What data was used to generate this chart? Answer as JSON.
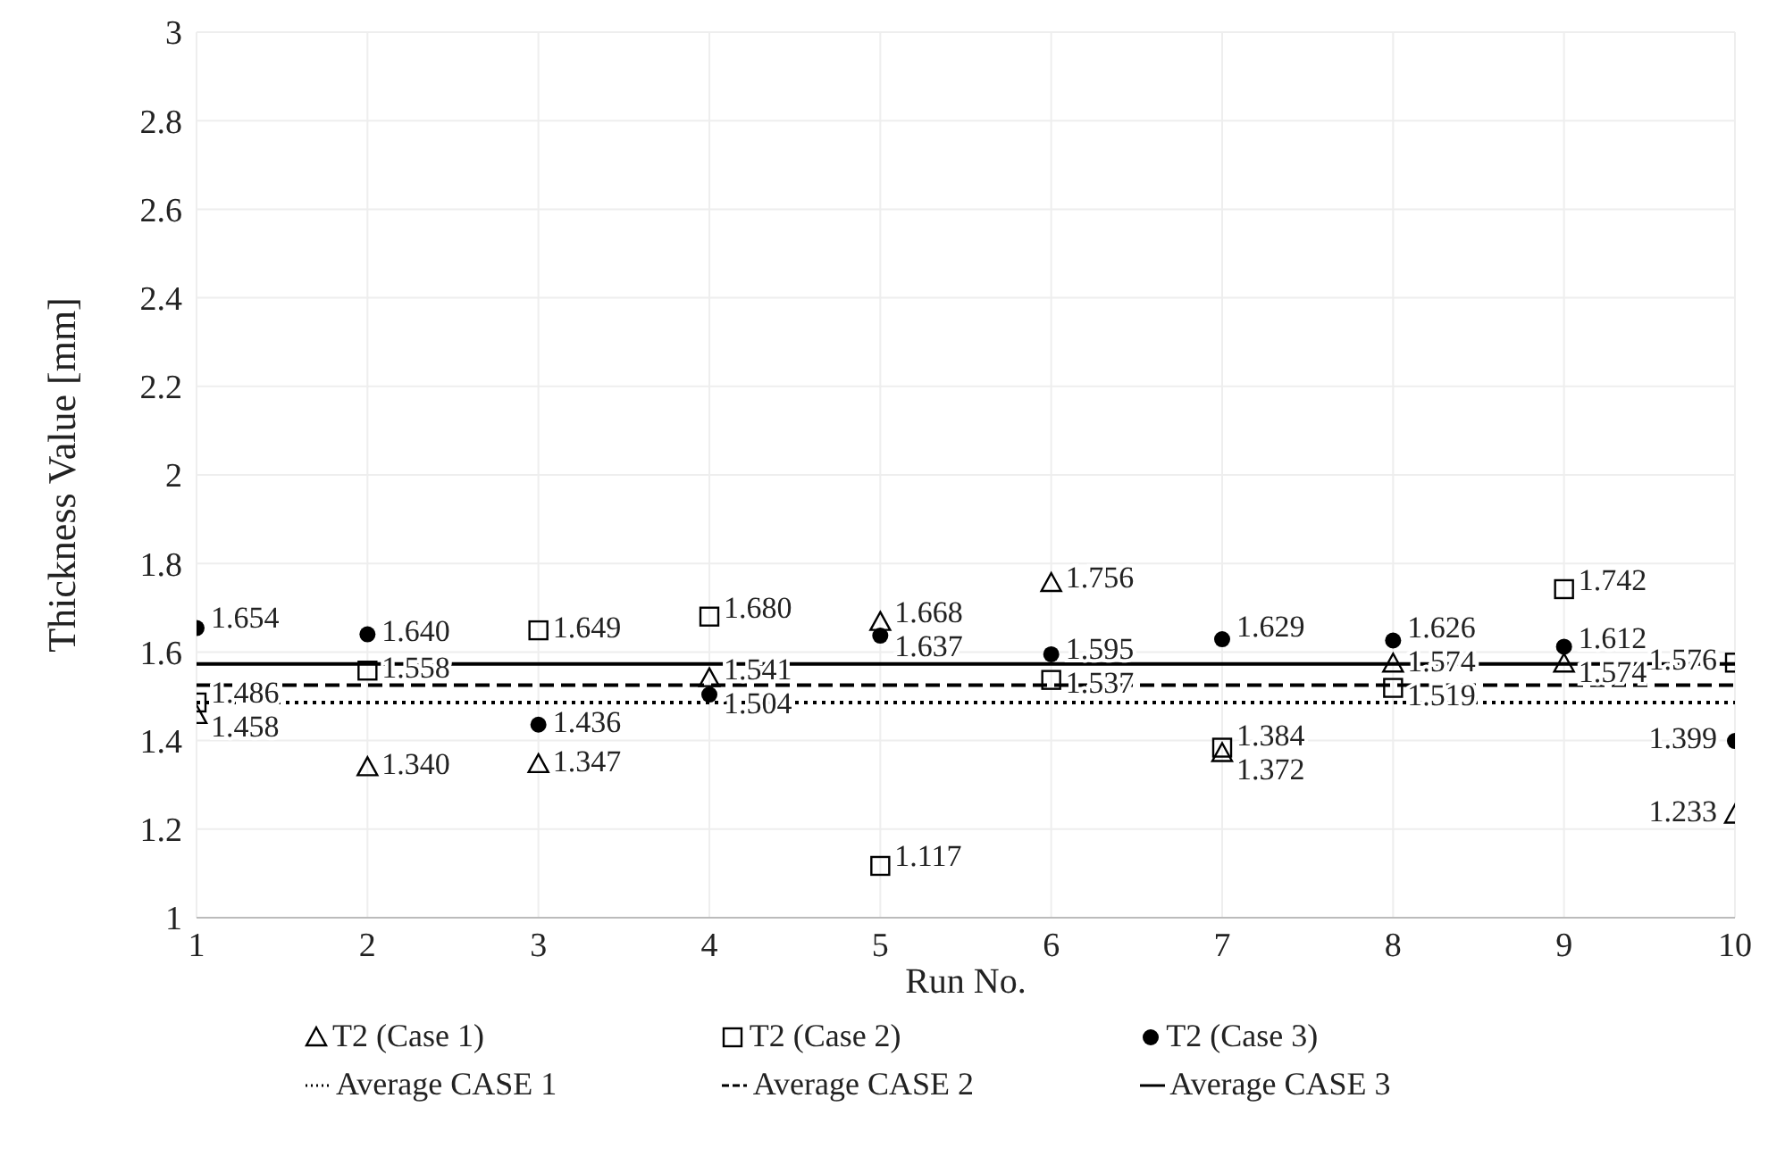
{
  "chart_data": {
    "type": "scatter",
    "xlabel": "Run No.",
    "ylabel": "Thickness Value [mm]",
    "x": [
      1,
      2,
      3,
      4,
      5,
      6,
      7,
      8,
      9,
      10
    ],
    "xlim": [
      1,
      10
    ],
    "xticks": [
      1,
      2,
      3,
      4,
      5,
      6,
      7,
      8,
      9,
      10
    ],
    "ylim": [
      1,
      3
    ],
    "yticks": [
      1,
      1.2,
      1.4,
      1.6,
      1.8,
      2,
      2.2,
      2.4,
      2.6,
      2.8,
      3
    ],
    "grid": true,
    "legend": "bottom",
    "series": [
      {
        "name": "T2  (Case 1)",
        "marker": "triangle",
        "color": "#000000",
        "values": [
          1.458,
          1.34,
          1.347,
          1.541,
          1.668,
          1.756,
          1.372,
          1.574,
          1.574,
          1.233
        ],
        "value_labels": [
          "1.458",
          "1.340",
          "1.347",
          "1.541",
          "1.668",
          "1.756",
          "1.372",
          "1.574",
          "1.574",
          "1.233"
        ]
      },
      {
        "name": "T2 (Case 2)",
        "marker": "square",
        "color": "#000000",
        "values": [
          1.486,
          1.558,
          1.649,
          1.68,
          1.117,
          1.537,
          1.384,
          1.519,
          1.742,
          1.576
        ],
        "value_labels": [
          "1.486",
          "1.558",
          "1.649",
          "1.680",
          "1.117",
          "1.537",
          "1.384",
          "1.519",
          "1.742",
          "1.576"
        ]
      },
      {
        "name": "T2  (Case 3)",
        "marker": "circle",
        "color": "#000000",
        "values": [
          1.654,
          1.64,
          1.436,
          1.504,
          1.637,
          1.595,
          1.629,
          1.626,
          1.612,
          1.399
        ],
        "value_labels": [
          "1.654",
          "1.640",
          "1.436",
          "1.504",
          "1.637",
          "1.595",
          "1.629",
          "1.626",
          "1.612",
          "1.399"
        ]
      },
      {
        "name": "Average CASE 1",
        "type": "line",
        "marker": "none",
        "line_style": "dotted",
        "color": "#000000",
        "values": [
          1.486,
          1.486,
          1.486,
          1.486,
          1.486,
          1.486,
          1.486,
          1.486,
          1.486,
          1.486
        ]
      },
      {
        "name": "Average CASE 2",
        "type": "line",
        "marker": "none",
        "line_style": "dashed",
        "color": "#000000",
        "values": [
          1.525,
          1.525,
          1.525,
          1.525,
          1.525,
          1.525,
          1.525,
          1.525,
          1.525,
          1.525
        ]
      },
      {
        "name": "Average CASE 3",
        "type": "line",
        "marker": "none",
        "line_style": "solid",
        "color": "#000000",
        "values": [
          1.573,
          1.573,
          1.573,
          1.573,
          1.573,
          1.573,
          1.573,
          1.573,
          1.573,
          1.573
        ]
      }
    ]
  }
}
